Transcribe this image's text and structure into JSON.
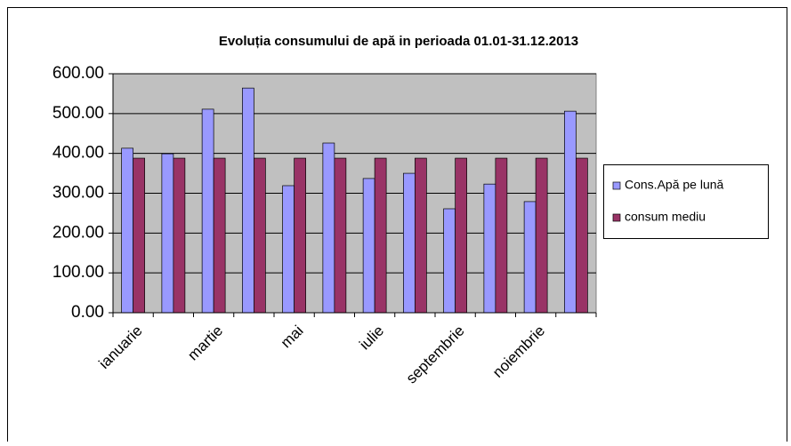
{
  "chart_data": {
    "type": "bar",
    "title": "Evoluția consumului de apă  in perioada 01.01-31.12.2013",
    "categories": [
      "ianuarie",
      null,
      "martie",
      null,
      "mai",
      null,
      "iulie",
      null,
      "septembrie",
      null,
      "noiembrie",
      null
    ],
    "series": [
      {
        "name": "Cons.Apă pe lună",
        "color": "#9999ff",
        "values": [
          413,
          399,
          511,
          564,
          319,
          426,
          337,
          350,
          261,
          323,
          279,
          506
        ]
      },
      {
        "name": "consum mediu",
        "color": "#993366",
        "values": [
          388,
          388,
          388,
          388,
          388,
          388,
          388,
          388,
          388,
          388,
          388,
          388
        ]
      }
    ],
    "ylim": [
      0,
      600
    ],
    "yticks": [
      {
        "value": 0,
        "label": "0.00"
      },
      {
        "value": 100,
        "label": "100.00"
      },
      {
        "value": 200,
        "label": "200.00"
      },
      {
        "value": 300,
        "label": "300.00"
      },
      {
        "value": 400,
        "label": "400.00"
      },
      {
        "value": 500,
        "label": "500.00"
      },
      {
        "value": 600,
        "label": "600.00"
      }
    ],
    "grid": true,
    "plot_background": "#c0c0c0",
    "legend": "right"
  }
}
